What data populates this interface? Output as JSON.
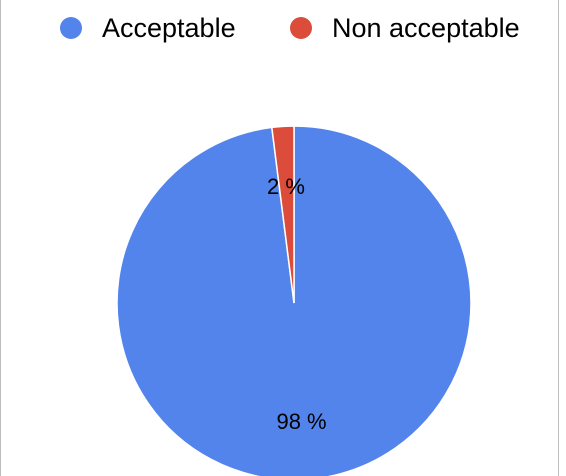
{
  "chart_data": {
    "type": "pie",
    "categories": [
      "Acceptable",
      "Non acceptable"
    ],
    "values": [
      98,
      2
    ],
    "data_labels": [
      "98 %",
      "2 %"
    ],
    "colors": [
      "#5384eb",
      "#dc4c3b"
    ],
    "start_angle_deg": 0,
    "direction": "clockwise",
    "legend": {
      "position": "top",
      "items": [
        {
          "label": "Acceptable",
          "color": "#5384eb"
        },
        {
          "label": "Non acceptable",
          "color": "#dc4c3b"
        }
      ]
    }
  }
}
